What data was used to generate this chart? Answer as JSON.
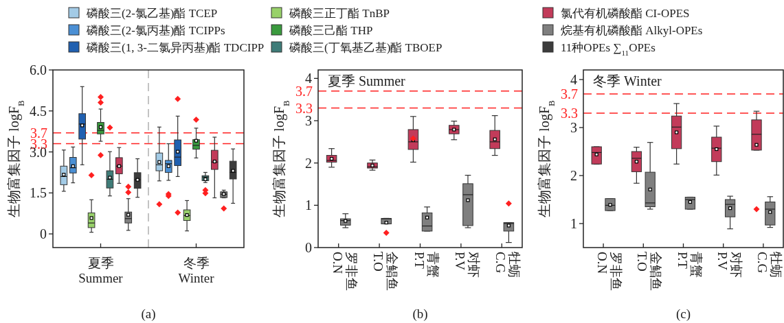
{
  "chart_data": [
    {
      "type": "box",
      "title": "(a)",
      "ylabel": "生物富集因子 logF$_{B}$",
      "categories": [
        "夏季\nSummer",
        "冬季\nWinter"
      ],
      "ylim": [
        -0.5,
        6.0
      ],
      "yticks": [
        0,
        1.5,
        {
          "value": 3,
          "label": "3.0"
        },
        4.5,
        {
          "value": 6,
          "label": "6.0"
        }
      ],
      "legend": "top",
      "grid": false,
      "ref_lines": [
        {
          "axis": "y",
          "value": 3.7,
          "label": "3.7",
          "color": "#ff2020",
          "line_style": "dashed"
        },
        {
          "axis": "y",
          "value": 3.3,
          "label": "3.3",
          "color": "#ff2020",
          "line_style": "dashed"
        }
      ],
      "series": [
        {
          "name": "磷酸三(2-氯乙基)酯 TCEP",
          "color": "#a3cbe6",
          "boxes": [
            {
              "low": 1.56,
              "q1": 1.8,
              "median": 2.1,
              "q3": 2.48,
              "high": 3.07,
              "mean": 2.17
            },
            {
              "low": 1.94,
              "q1": 2.31,
              "median": 2.53,
              "q3": 2.96,
              "high": 3.91,
              "mean": 2.63,
              "outliers": [
                1.09
              ]
            }
          ]
        },
        {
          "name": "磷酸三(2-氯丙基)酯 TCIPPs",
          "color": "#4a8fd4",
          "boxes": [
            {
              "low": 1.87,
              "q1": 2.23,
              "median": 2.42,
              "q3": 2.8,
              "high": 3.18,
              "mean": 2.48
            },
            {
              "low": 1.96,
              "q1": 2.25,
              "median": 2.57,
              "q3": 2.69,
              "high": 3.3,
              "mean": 2.48,
              "outliers": [
                1.46,
                1.39
              ]
            }
          ]
        },
        {
          "name": "磷酸三(1, 3-二氯异丙基)酯 TDCIPP",
          "color": "#2060b0",
          "boxes": [
            {
              "low": 2.53,
              "q1": 3.47,
              "median": 4.02,
              "q3": 4.4,
              "high": 5.39,
              "mean": 3.97
            },
            {
              "low": 2.1,
              "q1": 2.5,
              "median": 2.81,
              "q3": 3.44,
              "high": 4.31,
              "mean": 3.01,
              "outliers": [
                4.94,
                0.78
              ]
            }
          ]
        },
        {
          "name": "磷酸三正丁酯 TnBP",
          "color": "#98d16a",
          "boxes": [
            {
              "low": 0.06,
              "q1": 0.23,
              "median": 0.4,
              "q3": 0.77,
              "high": 1.25,
              "mean": 0.58,
              "outliers": [
                2.15
              ]
            },
            {
              "low": 0.11,
              "q1": 0.49,
              "median": 0.67,
              "q3": 0.88,
              "high": 1.22,
              "mean": 0.69
            }
          ]
        },
        {
          "name": "磷酸三己酯 THP",
          "color": "#3a9a3e",
          "boxes": [
            {
              "low": 3.39,
              "q1": 3.66,
              "median": 3.79,
              "q3": 4.08,
              "high": 4.57,
              "mean": 3.91,
              "outliers": [
                5.01,
                4.81,
                2.88
              ]
            },
            {
              "low": 2.78,
              "q1": 3.1,
              "median": 3.24,
              "q3": 3.45,
              "high": 3.87,
              "mean": 3.41,
              "outliers": [
                4.18
              ]
            }
          ]
        },
        {
          "name": "磷酸三(丁氧基乙基)酯 TBOEP",
          "color": "#3f7c78",
          "boxes": [
            {
              "low": 1.39,
              "q1": 1.68,
              "median": 2.0,
              "q3": 2.31,
              "high": 3.01,
              "mean": 2.06,
              "outliers": [
                3.89
              ]
            },
            {
              "low": 1.88,
              "q1": 1.95,
              "median": 2.08,
              "q3": 2.13,
              "high": 2.25,
              "mean": 2.0,
              "outliers": [
                1.6,
                1.49
              ]
            }
          ]
        },
        {
          "name": "氯代有机磷酸酯 CI-OPES",
          "color": "#c23b5a",
          "boxes": [
            {
              "low": 1.85,
              "q1": 2.2,
              "median": 2.48,
              "q3": 2.79,
              "high": 3.16,
              "mean": 2.48
            },
            {
              "low": 1.32,
              "q1": 2.36,
              "median": 2.63,
              "q3": 3.06,
              "high": 3.54,
              "mean": 2.65
            }
          ]
        },
        {
          "name": "烷基有机磷酸酯 Alkyl-OPEs",
          "color": "#7f7f7f",
          "boxes": [
            {
              "low": 0.13,
              "q1": 0.4,
              "median": 0.56,
              "q3": 0.8,
              "high": 1.29,
              "mean": 0.7,
              "outliers": [
                1.73,
                1.52
              ]
            },
            {
              "low": 1.32,
              "q1": 1.33,
              "median": 1.45,
              "q3": 1.54,
              "high": 1.6,
              "mean": 1.46,
              "outliers": [
                0.93
              ]
            }
          ]
        },
        {
          "name": "11种OPEs ∑$_{11}$OPEs",
          "color": "#3c3c3c",
          "boxes": [
            {
              "low": 1.34,
              "q1": 1.67,
              "median": 1.98,
              "q3": 2.24,
              "high": 2.75,
              "mean": 1.98
            },
            {
              "low": 1.12,
              "q1": 2.01,
              "median": 2.25,
              "q3": 2.66,
              "high": 3.11,
              "mean": 2.31
            }
          ]
        }
      ]
    },
    {
      "type": "box",
      "title": "(b)",
      "annotations": [
        "夏季 Summer"
      ],
      "ylabel": "生物富集因子 logF$_{B}$",
      "categories": [
        "罗非鱼\nO.N",
        "金鲳鱼\nT.O",
        "青蟹\nP.T",
        "对虾\nP.V",
        "牡蛎\nC.G"
      ],
      "ylim": [
        0,
        4.2
      ],
      "yticks": [
        0,
        1,
        2,
        3,
        4
      ],
      "grid": false,
      "ref_lines": [
        {
          "axis": "y",
          "value": 3.7,
          "label": "3.7",
          "color": "#ff2020",
          "line_style": "dashed"
        },
        {
          "axis": "y",
          "value": 3.3,
          "label": "3.3",
          "color": "#ff2020",
          "line_style": "dashed"
        }
      ],
      "series": [
        {
          "color": "#c23b5a",
          "boxes": [
            {
              "low": 1.9,
              "q1": 2.02,
              "median": 2.06,
              "q3": 2.18,
              "high": 2.34,
              "mean": 2.1
            },
            {
              "low": 1.83,
              "q1": 1.88,
              "median": 1.91,
              "q3": 2.0,
              "high": 2.07,
              "mean": 1.94
            },
            {
              "low": 2.02,
              "q1": 2.32,
              "median": 2.5,
              "q3": 2.79,
              "high": 3.1,
              "mean": 2.54,
              "outliers": [
                2.58
              ]
            },
            {
              "low": 2.55,
              "q1": 2.69,
              "median": 2.79,
              "q3": 2.89,
              "high": 2.99,
              "mean": 2.79
            },
            {
              "low": 2.18,
              "q1": 2.34,
              "median": 2.5,
              "q3": 2.77,
              "high": 3.12,
              "mean": 2.56
            }
          ]
        },
        {
          "color": "#7f7f7f",
          "boxes": [
            {
              "low": 0.47,
              "q1": 0.53,
              "median": 0.64,
              "q3": 0.68,
              "high": 0.8,
              "mean": 0.63
            },
            {
              "low": 0.56,
              "q1": 0.56,
              "median": 0.68,
              "q3": 0.69,
              "high": 0.69,
              "mean": 0.59,
              "outliers": [
                0.35
              ]
            },
            {
              "low": 0.39,
              "q1": 0.39,
              "median": 0.51,
              "q3": 0.82,
              "high": 0.96,
              "mean": 0.71
            },
            {
              "low": 0.47,
              "q1": 0.52,
              "median": 1.25,
              "q3": 1.51,
              "high": 1.71,
              "mean": 1.12
            },
            {
              "low": 0.12,
              "q1": 0.39,
              "median": 0.57,
              "q3": 0.59,
              "high": 0.59,
              "mean": 0.52,
              "outliers": [
                1.04
              ]
            }
          ]
        }
      ]
    },
    {
      "type": "box",
      "title": "(c)",
      "annotations": [
        "冬季 Winter"
      ],
      "ylabel": "生物富集因子 logF$_{B}$",
      "categories": [
        "罗非鱼\nO.N",
        "金鲳鱼\nT.O",
        "青蟹\nP.T",
        "对虾\nP.V",
        "牡蛎\nC.G"
      ],
      "ylim": [
        0.5,
        4.2
      ],
      "yticks": [
        1,
        2,
        3,
        4
      ],
      "grid": false,
      "ref_lines": [
        {
          "axis": "y",
          "value": 3.7,
          "label": "3.7",
          "color": "#ff2020",
          "line_style": "dashed"
        },
        {
          "axis": "y",
          "value": 3.3,
          "label": "3.3",
          "color": "#ff2020",
          "line_style": "dashed"
        }
      ],
      "series": [
        {
          "color": "#c23b5a",
          "boxes": [
            {
              "low": 2.24,
              "q1": 2.24,
              "median": 2.48,
              "q3": 2.6,
              "high": 2.6,
              "mean": 2.44
            },
            {
              "low": 1.84,
              "q1": 2.08,
              "median": 2.36,
              "q3": 2.5,
              "high": 2.59,
              "mean": 2.29
            },
            {
              "low": 2.24,
              "q1": 2.56,
              "median": 3.01,
              "q3": 3.24,
              "high": 3.5,
              "mean": 2.9
            },
            {
              "low": 2.01,
              "q1": 2.29,
              "median": 2.57,
              "q3": 2.8,
              "high": 3.03,
              "mean": 2.55
            },
            {
              "low": 2.53,
              "q1": 2.53,
              "median": 2.86,
              "q3": 3.16,
              "high": 3.34,
              "mean": 2.64,
              "outliers": [
                1.3
              ]
            }
          ]
        },
        {
          "color": "#7f7f7f",
          "boxes": [
            {
              "low": 1.27,
              "q1": 1.27,
              "median": 1.38,
              "q3": 1.52,
              "high": 1.52,
              "mean": 1.39
            },
            {
              "low": 1.3,
              "q1": 1.35,
              "median": 1.43,
              "q3": 2.07,
              "high": 2.69,
              "mean": 1.71
            },
            {
              "low": 1.3,
              "q1": 1.3,
              "median": 1.5,
              "q3": 1.55,
              "high": 1.55,
              "mean": 1.45
            },
            {
              "low": 0.89,
              "q1": 1.14,
              "median": 1.4,
              "q3": 1.5,
              "high": 1.57,
              "mean": 1.32
            },
            {
              "low": 0.92,
              "q1": 0.97,
              "median": 1.3,
              "q3": 1.45,
              "high": 1.56,
              "mean": 1.24
            }
          ]
        }
      ]
    }
  ]
}
